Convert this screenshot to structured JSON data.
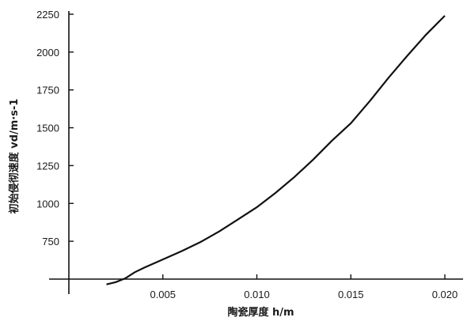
{
  "chart_data": {
    "type": "line",
    "xlabel": "陶瓷厚度 h/m",
    "ylabel": "初始侵彻速度 vd/m·s-1",
    "xlim": [
      0.0,
      0.02
    ],
    "ylim": [
      500,
      2250
    ],
    "x_ticks": [
      "0.005",
      "0.010",
      "0.015",
      "0.020"
    ],
    "y_ticks": [
      "750",
      "1000",
      "1250",
      "1500",
      "1750",
      "2000",
      "2250"
    ],
    "grid": false,
    "series": [
      {
        "x": [
          0.002,
          0.0025,
          0.003,
          0.0035,
          0.004,
          0.005,
          0.006,
          0.007,
          0.008,
          0.009,
          0.01,
          0.011,
          0.012,
          0.013,
          0.014,
          0.015,
          0.016,
          0.017,
          0.018,
          0.019,
          0.02
        ],
        "y": [
          465,
          480,
          505,
          545,
          575,
          630,
          685,
          745,
          815,
          895,
          975,
          1070,
          1175,
          1290,
          1415,
          1530,
          1675,
          1830,
          1975,
          2115,
          2240
        ]
      }
    ]
  }
}
